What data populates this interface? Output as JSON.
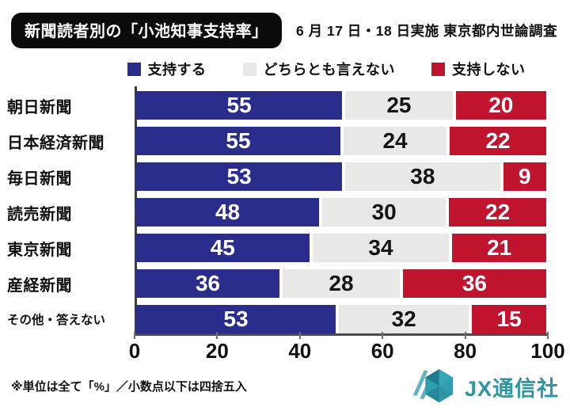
{
  "header": {
    "title": "新聞読者別の「小池知事支持率」",
    "subtitle": "6 月 17 日・18 日実施 東京都内世論調査"
  },
  "legend": [
    {
      "label": "支持する",
      "color": "#2a2d8c"
    },
    {
      "label": "どちらとも言えない",
      "color": "#e8e8e6"
    },
    {
      "label": "支持しない",
      "color": "#c0142f"
    }
  ],
  "chart_data": {
    "type": "bar",
    "orientation": "horizontal",
    "stacked": true,
    "title": "新聞読者別の「小池知事支持率」",
    "subtitle": "6 月 17 日・18 日実施 東京都内世論調査",
    "categories": [
      "朝日新聞",
      "日本経済新聞",
      "毎日新聞",
      "読売新聞",
      "東京新聞",
      "産経新聞",
      "その他・答えない"
    ],
    "series": [
      {
        "name": "支持する",
        "color": "#2a2d8c",
        "text_color": "#ffffff",
        "values": [
          55,
          55,
          53,
          48,
          45,
          36,
          53
        ]
      },
      {
        "name": "どちらとも言えない",
        "color": "#e8e8e6",
        "text_color": "#151515",
        "values": [
          25,
          24,
          38,
          30,
          34,
          28,
          32
        ]
      },
      {
        "name": "支持しない",
        "color": "#c0142f",
        "text_color": "#ffffff",
        "values": [
          20,
          22,
          9,
          22,
          21,
          36,
          15
        ]
      }
    ],
    "x_ticks": [
      0,
      20,
      40,
      60,
      80,
      100
    ],
    "xlim": [
      0,
      100
    ],
    "unit": "%",
    "grid": false,
    "legend_position": "top"
  },
  "footnote": "※単位は全て「%」／小数点以下は四捨五入",
  "logo": {
    "text": "JX通信社",
    "color": "#2a97a5"
  }
}
